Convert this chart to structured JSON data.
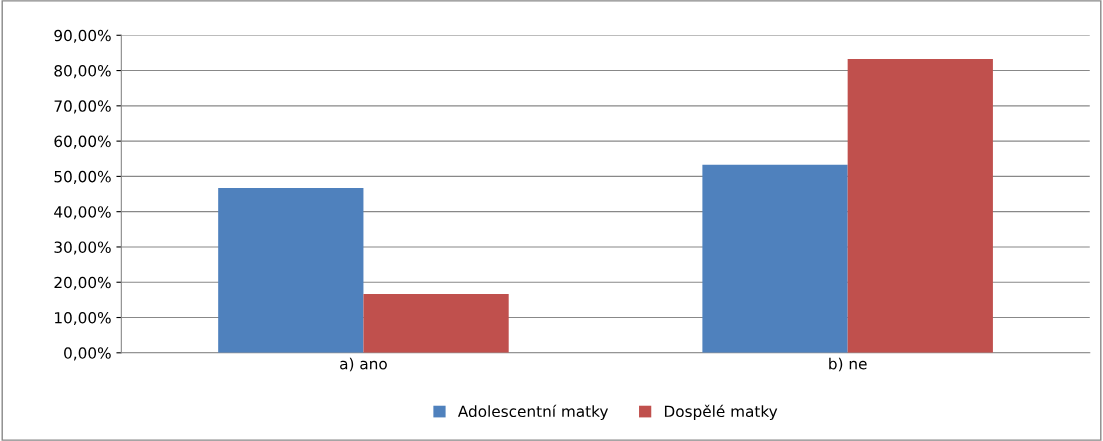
{
  "chart_data": {
    "type": "bar",
    "categories": [
      "a) ano",
      "b) ne"
    ],
    "series": [
      {
        "name": "Adolescentní matky",
        "color": "#4f81bd",
        "values": [
          46.7,
          53.3
        ]
      },
      {
        "name": "Dospělé matky",
        "color": "#c0504d",
        "values": [
          16.7,
          83.3
        ]
      }
    ],
    "ylim": [
      0,
      90
    ],
    "yticks": [
      {
        "value": 0,
        "label": "0,00%"
      },
      {
        "value": 10,
        "label": "10,00%"
      },
      {
        "value": 20,
        "label": "20,00%"
      },
      {
        "value": 30,
        "label": "30,00%"
      },
      {
        "value": 40,
        "label": "40,00%"
      },
      {
        "value": 50,
        "label": "50,00%"
      },
      {
        "value": 60,
        "label": "60,00%"
      },
      {
        "value": 70,
        "label": "70,00%"
      },
      {
        "value": 80,
        "label": "80,00%"
      },
      {
        "value": 90,
        "label": "90,00%"
      }
    ],
    "grid": "y",
    "legend": "bottom"
  }
}
